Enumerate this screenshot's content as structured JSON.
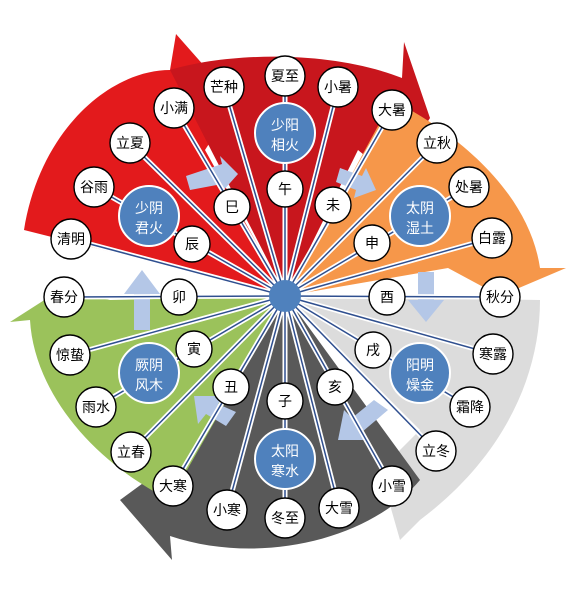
{
  "colors": {
    "red": "#e31a1c",
    "dark_red": "#c0121a",
    "orange": "#f6974a",
    "light_gray": "#dcdcdc",
    "green": "#9bc25b",
    "dark_gray": "#5a5a5a",
    "blue": "#4f81bd",
    "light_blue": "#b4c7e7",
    "spoke": "#2f4f8f"
  },
  "center": {
    "icon": "center-dot-icon"
  },
  "qi_labels": [
    {
      "id": "shaoyang",
      "line1": "少阳",
      "line2": "相火"
    },
    {
      "id": "taiyin",
      "line1": "太阴",
      "line2": "湿土"
    },
    {
      "id": "yangming",
      "line1": "阳明",
      "line2": "燥金"
    },
    {
      "id": "taiyang",
      "line1": "太阳",
      "line2": "寒水"
    },
    {
      "id": "jueyin",
      "line1": "厥阴",
      "line2": "风木"
    },
    {
      "id": "shaoyin",
      "line1": "少阴",
      "line2": "君火"
    }
  ],
  "branches": [
    "巳",
    "午",
    "未",
    "申",
    "酉",
    "戌",
    "亥",
    "子",
    "丑",
    "寅",
    "卯",
    "辰"
  ],
  "solar_terms": [
    "芒种",
    "夏至",
    "小暑",
    "大暑",
    "立秋",
    "处暑",
    "白露",
    "秋分",
    "寒露",
    "霜降",
    "立冬",
    "小雪",
    "大雪",
    "冬至",
    "小寒",
    "大寒",
    "立春",
    "雨水",
    "惊蛰",
    "春分",
    "清明",
    "谷雨",
    "立夏",
    "小满"
  ]
}
